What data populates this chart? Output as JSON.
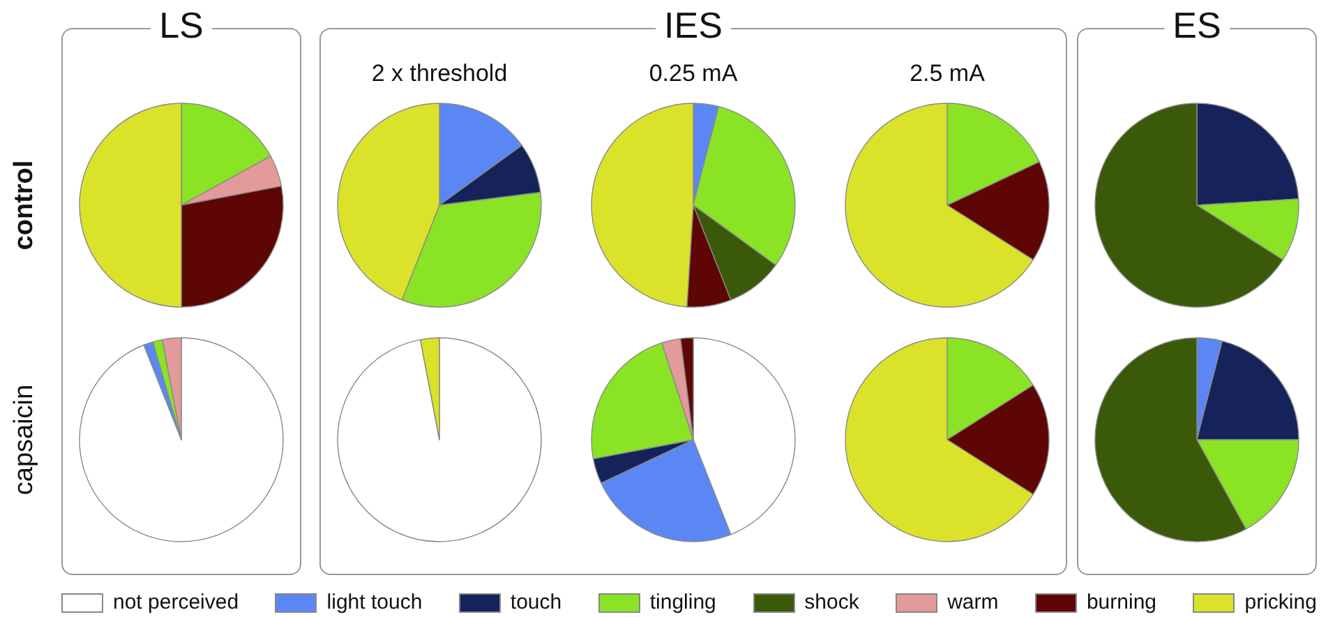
{
  "chart_data": {
    "type": "pie",
    "legend": "bottom",
    "categories": [
      "not perceived",
      "light touch",
      "touch",
      "tingling",
      "shock",
      "warm",
      "burning",
      "pricking"
    ],
    "colors": [
      "#ffffff",
      "#5b87f5",
      "#16235a",
      "#8ae325",
      "#3a5a0a",
      "#e39a9a",
      "#5e0606",
      "#dbe22a"
    ],
    "series": [
      {
        "values": [
          0,
          0,
          0,
          17,
          0,
          5,
          28,
          50
        ]
      },
      {
        "values": [
          0,
          15,
          8,
          33,
          0,
          0,
          0,
          44
        ]
      },
      {
        "values": [
          0,
          4,
          0,
          31,
          9,
          0,
          7,
          49
        ]
      },
      {
        "values": [
          0,
          0,
          0,
          18,
          0,
          0,
          16,
          66
        ]
      },
      {
        "values": [
          0,
          0,
          24,
          10,
          66,
          0,
          0,
          0
        ]
      },
      {
        "values": [
          94,
          1.5,
          0,
          1.5,
          0,
          3,
          0,
          0
        ]
      },
      {
        "values": [
          97,
          0,
          0,
          0,
          0,
          0,
          0,
          3
        ]
      },
      {
        "values": [
          44,
          24,
          4,
          23,
          0,
          3,
          2,
          0
        ]
      },
      {
        "values": [
          0,
          0,
          0,
          16,
          0,
          0,
          18,
          66
        ]
      },
      {
        "values": [
          0,
          4,
          21,
          17,
          58,
          0,
          0,
          0
        ]
      }
    ],
    "annotations": [
      "LS",
      "IES",
      "ES",
      "2 x threshold",
      "0.25 mA",
      "2.5 mA",
      "control",
      "capsaicin"
    ]
  }
}
